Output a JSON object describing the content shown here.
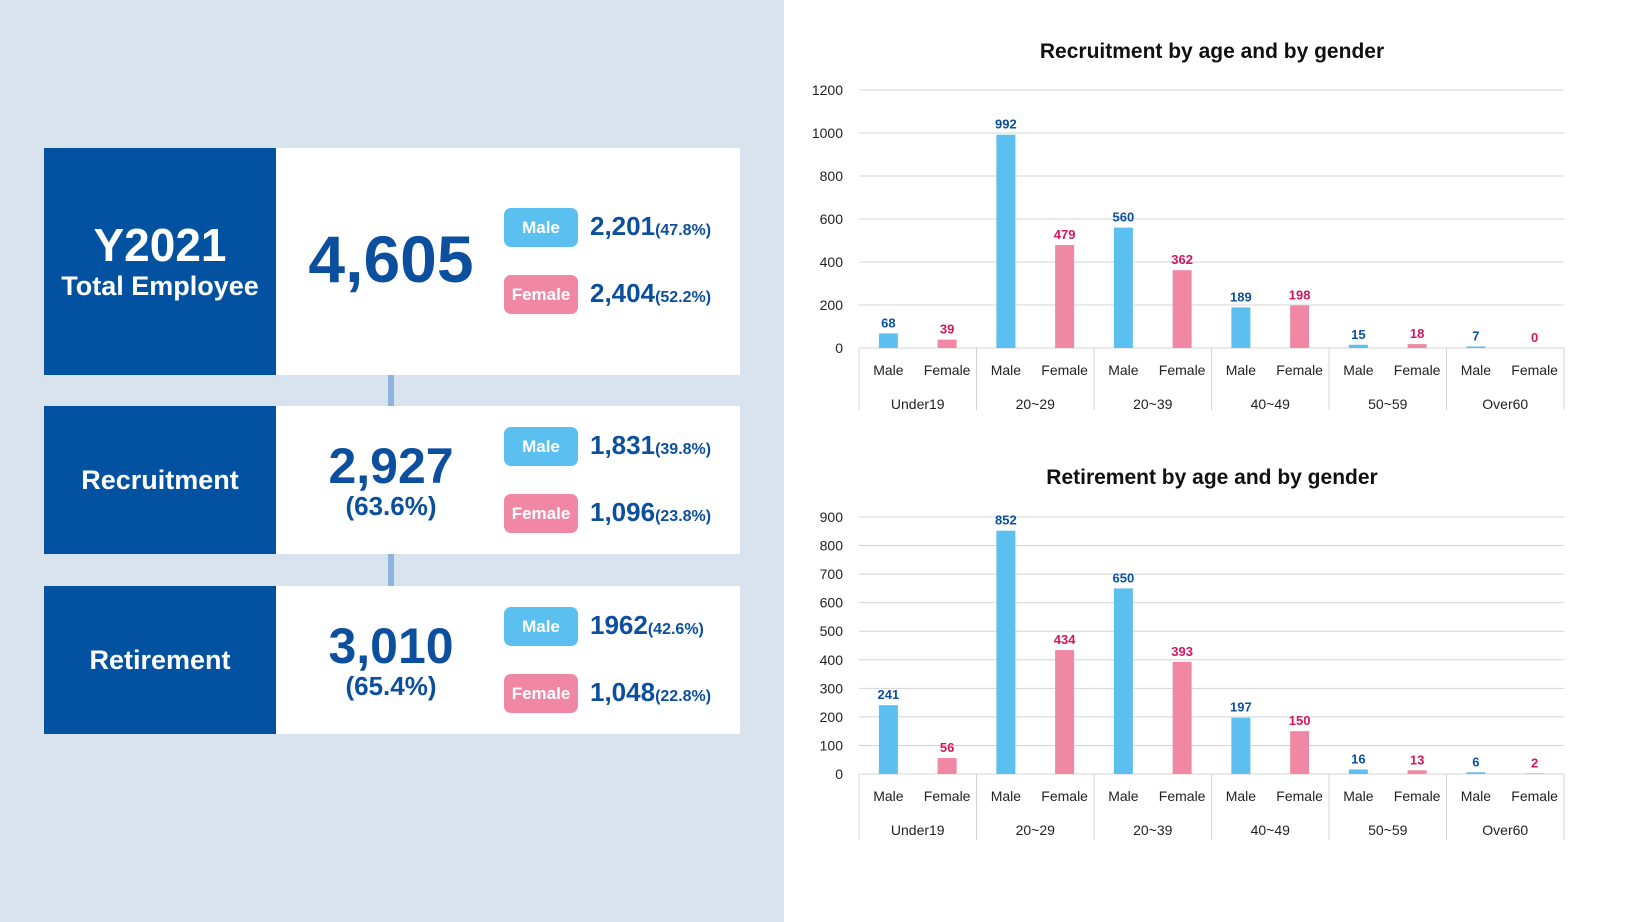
{
  "summary": {
    "total": {
      "year": "Y2021",
      "label": "Total Employee",
      "value": "4,605",
      "male_label": "Male",
      "male_value": "2,201",
      "male_pct": "(47.8%)",
      "female_label": "Female",
      "female_value": "2,404",
      "female_pct": "(52.2%)"
    },
    "recruitment": {
      "label": "Recruitment",
      "value": "2,927",
      "pct": "(63.6%)",
      "male_label": "Male",
      "male_value": "1,831",
      "male_pct": "(39.8%)",
      "female_label": "Female",
      "female_value": "1,096",
      "female_pct": "(23.8%)"
    },
    "retirement": {
      "label": "Retirement",
      "value": "3,010",
      "pct": "(65.4%)",
      "male_label": "Male",
      "male_value": "1962",
      "male_pct": "(42.6%)",
      "female_label": "Female",
      "female_value": "1,048",
      "female_pct": "(22.8%)"
    }
  },
  "colors": {
    "navy": "#0352a1",
    "male": "#5bc0ef",
    "female": "#f087a5",
    "male_text": "#0b4f9e",
    "female_text": "#d3165e",
    "background": "#d9e3ee"
  },
  "chart_data": [
    {
      "type": "bar",
      "title": "Recruitment by age and by gender",
      "groups": [
        "Under19",
        "20~29",
        "20~39",
        "40~49",
        "50~59",
        "Over60"
      ],
      "subcategories": [
        "Male",
        "Female"
      ],
      "series": [
        {
          "name": "Male",
          "values": [
            68,
            992,
            560,
            189,
            15,
            7
          ]
        },
        {
          "name": "Female",
          "values": [
            39,
            479,
            362,
            198,
            18,
            0
          ]
        }
      ],
      "ylim": [
        0,
        1200
      ],
      "yticks": [
        0,
        200,
        400,
        600,
        800,
        1000,
        1200
      ],
      "grid": true
    },
    {
      "type": "bar",
      "title": "Retirement by age and by gender",
      "groups": [
        "Under19",
        "20~29",
        "20~39",
        "40~49",
        "50~59",
        "Over60"
      ],
      "subcategories": [
        "Male",
        "Female"
      ],
      "series": [
        {
          "name": "Male",
          "values": [
            241,
            852,
            650,
            197,
            16,
            6
          ]
        },
        {
          "name": "Female",
          "values": [
            56,
            434,
            393,
            150,
            13,
            2
          ]
        }
      ],
      "ylim": [
        0,
        900
      ],
      "yticks": [
        0,
        100,
        200,
        300,
        400,
        500,
        600,
        700,
        800,
        900
      ],
      "grid": true
    }
  ]
}
